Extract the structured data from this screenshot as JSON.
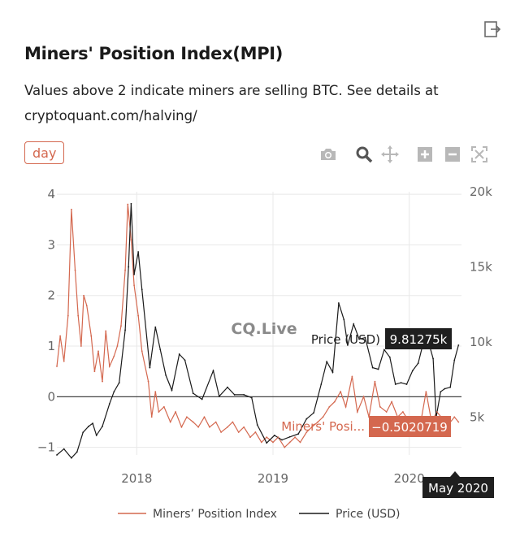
{
  "header": {
    "title": "Miners' Position Index(MPI)",
    "subtitle": "Values above 2 indicate miners are selling BTC. See details at cryptoquant.com/halving/",
    "export_icon": "export-icon"
  },
  "controls": {
    "range_label": "day",
    "modebar_icons": [
      "camera-icon",
      "zoom-icon",
      "pan-icon",
      "zoom-in-icon",
      "zoom-out-icon",
      "autoscale-icon"
    ]
  },
  "watermark": "CQ.Live",
  "colors": {
    "mpi": "#d4684f",
    "price": "#1a1a1a",
    "zero_line": "#444444",
    "grid": "#e8e8e8",
    "tooltip_price_bg": "#1f1f1f",
    "tooltip_mpi_bg": "#d4684f"
  },
  "hover": {
    "price_label": "Price (USD)",
    "price_value": "9.81275k",
    "mpi_label": "Miners' Posi...",
    "mpi_value": "−0.5020719",
    "x_label": "May 2020"
  },
  "chart_data": {
    "type": "line",
    "title": "Miners' Position Index(MPI)",
    "x_range": [
      "2017-06-01",
      "2020-05-20"
    ],
    "x_ticks": [
      "2018",
      "2019",
      "2020"
    ],
    "y_left": {
      "range": [
        -1.15,
        4.05
      ],
      "ticks": [
        "4",
        "3",
        "2",
        "1",
        "0",
        "−1"
      ],
      "tick_values": [
        4,
        3,
        2,
        1,
        0,
        -1
      ]
    },
    "y_right": {
      "range": [
        2500,
        20000
      ],
      "ticks": [
        "20k",
        "15k",
        "10k",
        "5k"
      ],
      "tick_values": [
        20000,
        15000,
        10000,
        5000
      ]
    },
    "legend": {
      "position": "bottom",
      "entries": [
        "Miners’ Position Index",
        "Price (USD)"
      ]
    },
    "series": [
      {
        "name": "Miners’ Position Index",
        "axis": "left",
        "x": [
          "2017-06-01",
          "2017-06-10",
          "2017-06-20",
          "2017-07-01",
          "2017-07-10",
          "2017-07-20",
          "2017-07-28",
          "2017-08-05",
          "2017-08-12",
          "2017-08-20",
          "2017-09-01",
          "2017-09-10",
          "2017-09-20",
          "2017-10-01",
          "2017-10-10",
          "2017-10-20",
          "2017-11-01",
          "2017-11-10",
          "2017-11-20",
          "2017-12-01",
          "2017-12-08",
          "2017-12-17",
          "2017-12-25",
          "2018-01-05",
          "2018-01-15",
          "2018-02-01",
          "2018-02-10",
          "2018-02-20",
          "2018-03-01",
          "2018-03-15",
          "2018-04-01",
          "2018-04-15",
          "2018-05-01",
          "2018-05-15",
          "2018-06-01",
          "2018-06-15",
          "2018-07-01",
          "2018-07-15",
          "2018-08-01",
          "2018-08-15",
          "2018-09-01",
          "2018-09-15",
          "2018-10-01",
          "2018-10-15",
          "2018-11-01",
          "2018-11-15",
          "2018-12-01",
          "2018-12-15",
          "2019-01-01",
          "2019-01-15",
          "2019-02-01",
          "2019-02-15",
          "2019-03-01",
          "2019-03-15",
          "2019-04-01",
          "2019-04-15",
          "2019-05-01",
          "2019-05-15",
          "2019-06-01",
          "2019-06-15",
          "2019-07-01",
          "2019-07-15",
          "2019-08-01",
          "2019-08-15",
          "2019-09-01",
          "2019-09-15",
          "2019-10-01",
          "2019-10-15",
          "2019-11-01",
          "2019-11-15",
          "2019-12-01",
          "2019-12-15",
          "2020-01-01",
          "2020-01-15",
          "2020-02-01",
          "2020-02-15",
          "2020-03-01",
          "2020-03-15",
          "2020-04-01",
          "2020-04-15",
          "2020-05-01",
          "2020-05-12"
        ],
        "values": [
          0.6,
          1.2,
          0.7,
          1.6,
          3.7,
          2.5,
          1.6,
          1.0,
          2.0,
          1.8,
          1.2,
          0.5,
          0.9,
          0.3,
          1.3,
          0.6,
          0.8,
          1.0,
          1.4,
          2.5,
          3.8,
          3.1,
          2.2,
          1.6,
          0.9,
          0.3,
          -0.4,
          0.1,
          -0.3,
          -0.2,
          -0.5,
          -0.3,
          -0.6,
          -0.4,
          -0.5,
          -0.6,
          -0.4,
          -0.6,
          -0.5,
          -0.7,
          -0.6,
          -0.5,
          -0.7,
          -0.6,
          -0.8,
          -0.7,
          -0.9,
          -0.8,
          -0.9,
          -0.8,
          -1.0,
          -0.9,
          -0.8,
          -0.9,
          -0.7,
          -0.6,
          -0.5,
          -0.4,
          -0.2,
          -0.1,
          0.1,
          -0.2,
          0.4,
          -0.3,
          0.0,
          -0.4,
          0.3,
          -0.2,
          -0.3,
          -0.1,
          -0.4,
          -0.3,
          -0.5,
          -0.4,
          -0.5,
          0.1,
          -0.5,
          -0.3,
          -0.45,
          -0.55,
          -0.4,
          -0.5
        ]
      },
      {
        "name": "Price (USD)",
        "axis": "right",
        "x": [
          "2017-06-01",
          "2017-06-20",
          "2017-07-10",
          "2017-07-25",
          "2017-08-10",
          "2017-08-25",
          "2017-09-05",
          "2017-09-15",
          "2017-10-01",
          "2017-10-20",
          "2017-11-01",
          "2017-11-15",
          "2017-12-01",
          "2017-12-10",
          "2017-12-17",
          "2017-12-25",
          "2018-01-05",
          "2018-01-15",
          "2018-02-05",
          "2018-02-20",
          "2018-03-05",
          "2018-03-20",
          "2018-04-05",
          "2018-04-25",
          "2018-05-10",
          "2018-06-01",
          "2018-06-25",
          "2018-07-25",
          "2018-08-10",
          "2018-09-01",
          "2018-09-20",
          "2018-10-15",
          "2018-11-05",
          "2018-11-20",
          "2018-12-15",
          "2019-01-05",
          "2019-01-25",
          "2019-02-15",
          "2019-03-10",
          "2019-04-01",
          "2019-04-20",
          "2019-05-10",
          "2019-05-25",
          "2019-06-10",
          "2019-06-26",
          "2019-07-10",
          "2019-07-20",
          "2019-08-05",
          "2019-08-20",
          "2019-09-05",
          "2019-09-25",
          "2019-10-10",
          "2019-10-26",
          "2019-11-10",
          "2019-11-25",
          "2019-12-10",
          "2019-12-25",
          "2020-01-10",
          "2020-01-25",
          "2020-02-10",
          "2020-02-25",
          "2020-03-05",
          "2020-03-13",
          "2020-03-25",
          "2020-04-05",
          "2020-04-20",
          "2020-05-01",
          "2020-05-12"
        ],
        "values": [
          2500,
          2900,
          2300,
          2700,
          4000,
          4400,
          4600,
          3800,
          4400,
          5900,
          6700,
          7300,
          10800,
          15000,
          19200,
          14500,
          16000,
          13500,
          8300,
          11000,
          9500,
          7800,
          6800,
          9200,
          8800,
          6600,
          6200,
          8100,
          6400,
          7000,
          6500,
          6500,
          6300,
          4500,
          3300,
          3800,
          3500,
          3700,
          3900,
          4900,
          5300,
          7200,
          8700,
          8000,
          12600,
          11500,
          9800,
          11200,
          10200,
          10300,
          8300,
          8200,
          9500,
          9000,
          7200,
          7300,
          7200,
          8100,
          8600,
          10200,
          9700,
          8900,
          5000,
          6700,
          6900,
          7000,
          8800,
          9800
        ]
      }
    ]
  }
}
